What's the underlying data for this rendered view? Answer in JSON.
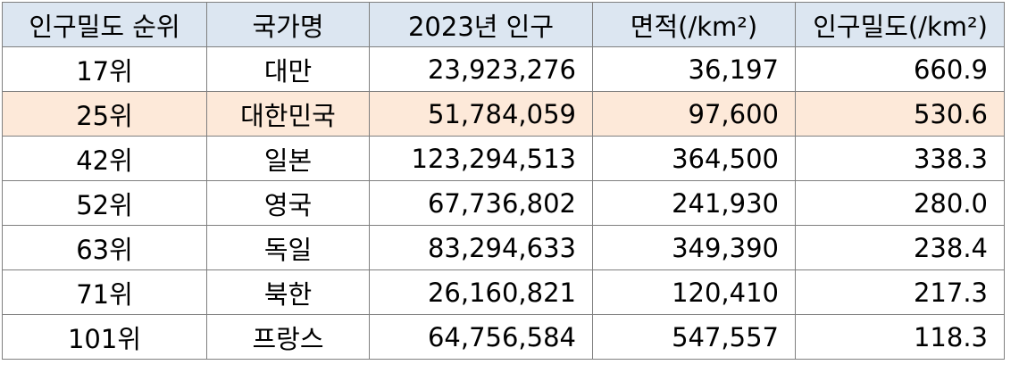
{
  "table": {
    "headers": [
      "인구밀도 순위",
      "국가명",
      "2023년 인구",
      "면적(/km²)",
      "인구밀도(/km²)"
    ],
    "highlight_color": "#fde9d9",
    "header_color": "#dce6f1",
    "rows": [
      [
        "17위",
        "대만",
        "23,923,276",
        "36,197",
        "660.9"
      ],
      [
        "25위",
        "대한민국",
        "51,784,059",
        "97,600",
        "530.6"
      ],
      [
        "42위",
        "일본",
        "123,294,513",
        "364,500",
        "338.3"
      ],
      [
        "52위",
        "영국",
        "67,736,802",
        "241,930",
        "280.0"
      ],
      [
        "63위",
        "독일",
        "83,294,633",
        "349,390",
        "238.4"
      ],
      [
        "71위",
        "북한",
        "26,160,821",
        "120,410",
        "217.3"
      ],
      [
        "101위",
        "프랑스",
        "64,756,584",
        "547,557",
        "118.3"
      ]
    ]
  }
}
